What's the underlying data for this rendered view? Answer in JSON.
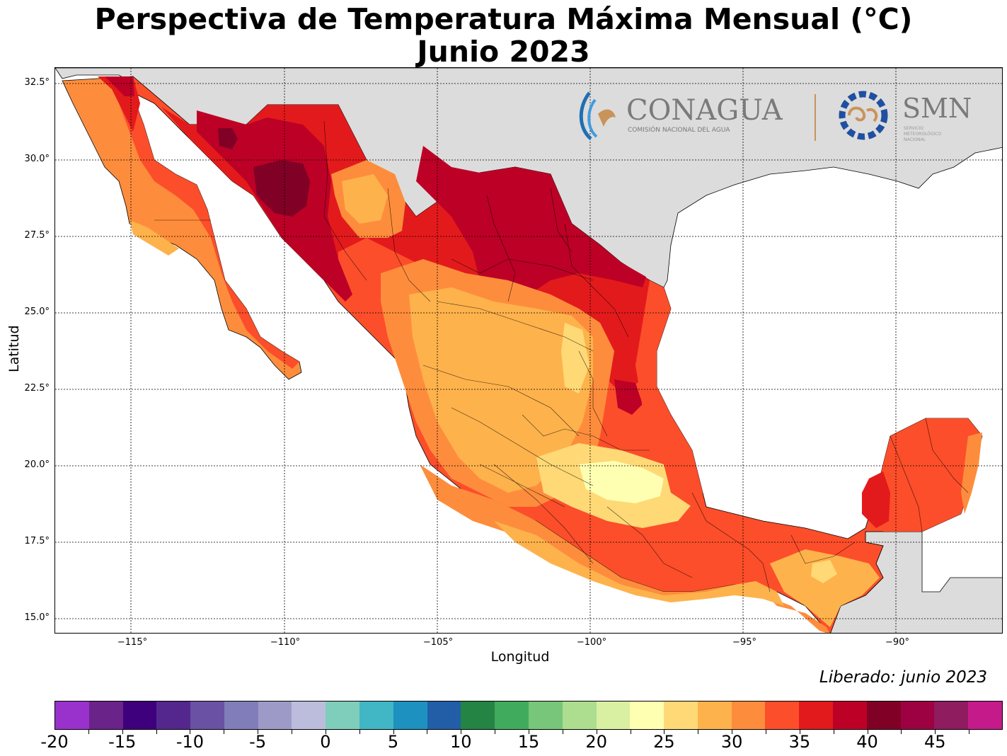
{
  "title_line1": "Perspectiva de Temperatura Máxima Mensual (°C)",
  "title_line2": "Junio 2023",
  "xlabel": "Longitud",
  "ylabel": "Latitud",
  "released": "Liberado: junio 2023",
  "yticks": [
    "32.5°",
    "30.0°",
    "27.5°",
    "25.0°",
    "22.5°",
    "20.0°",
    "17.5°",
    "15.0°"
  ],
  "xticks": [
    "−115°",
    "−110°",
    "−105°",
    "−100°",
    "−95°",
    "−90°"
  ],
  "logo": {
    "conagua": "CONAGUA",
    "conagua_sub": "COMISIÓN NACIONAL DEL AGUA",
    "smn": "SMN",
    "smn_sub1": "SERVICIO",
    "smn_sub2": "METEOROLÓGICO",
    "smn_sub3": "NACIONAL"
  },
  "colorbar": {
    "labels": [
      "-20",
      "-15",
      "-10",
      "-5",
      "0",
      "5",
      "10",
      "15",
      "20",
      "25",
      "30",
      "35",
      "40",
      "45"
    ],
    "colors": [
      "#9932cc",
      "#6a2388",
      "#3f007d",
      "#54278f",
      "#6a51a3",
      "#807dba",
      "#9e9ac8",
      "#bcbddc",
      "#7fcdbb",
      "#41b6c4",
      "#1d91c0",
      "#225ea8",
      "#238443",
      "#41ab5d",
      "#78c679",
      "#addd8e",
      "#d9f0a3",
      "#ffffb2",
      "#fed976",
      "#feb24c",
      "#fd8d3c",
      "#fc4e2a",
      "#e31a1c",
      "#bd0026",
      "#800026",
      "#9e0142",
      "#8e1c5e",
      "#c51b8a"
    ]
  },
  "map": {
    "extent_lon": [
      -117.5,
      -86.5
    ],
    "extent_lat": [
      14.5,
      33
    ],
    "background_land_color": "#dcdcdc",
    "ocean_color": "#ffffff"
  }
}
